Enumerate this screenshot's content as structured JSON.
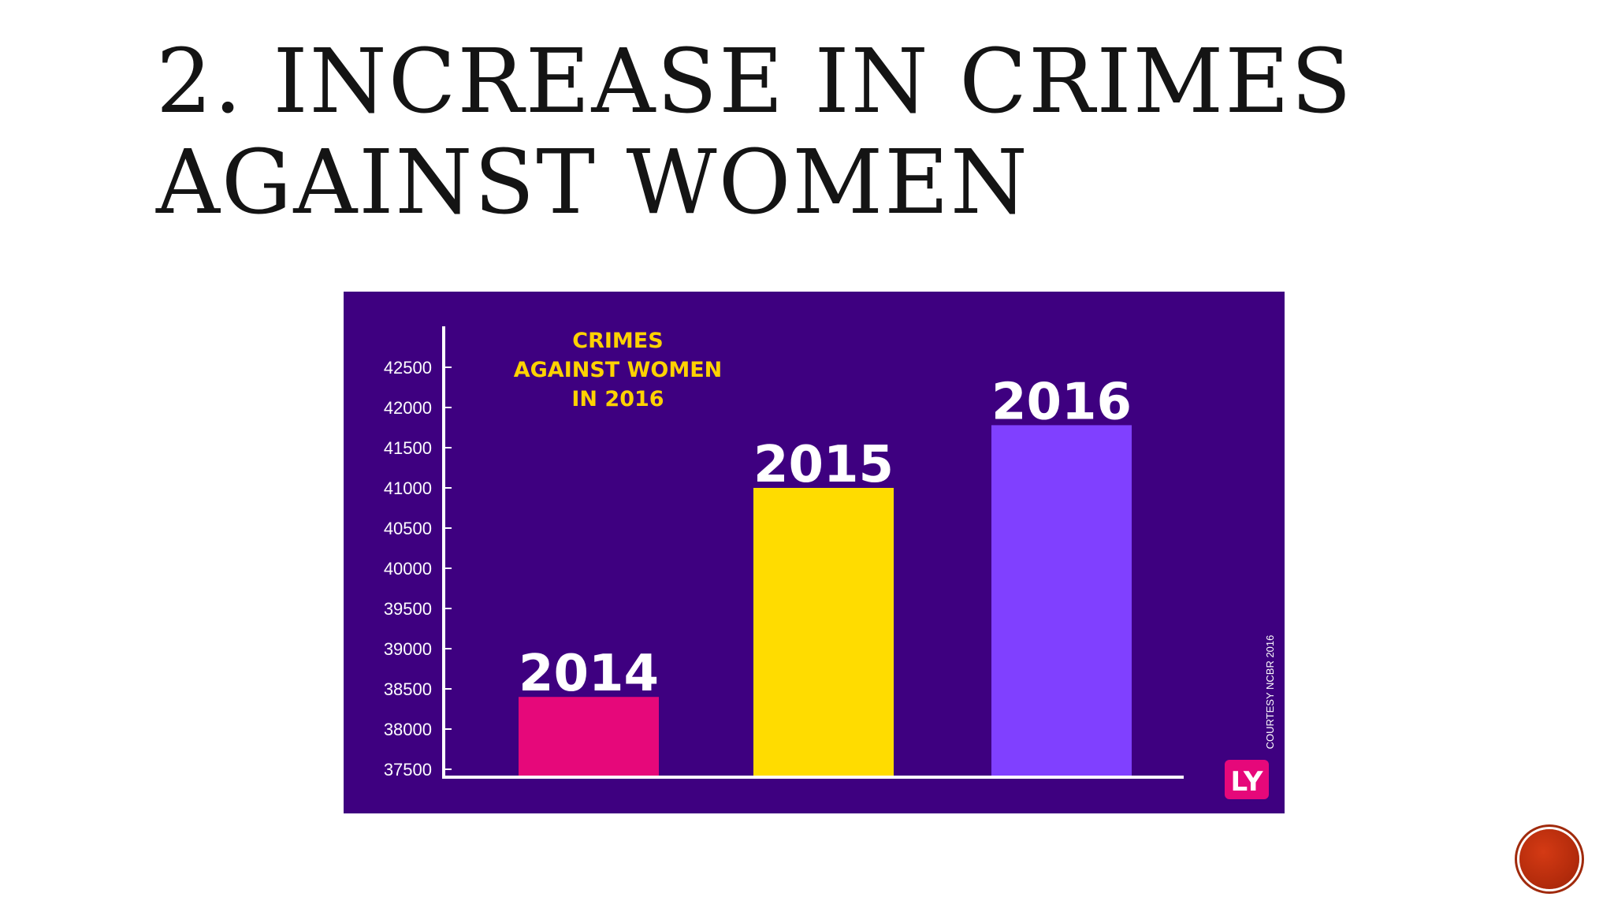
{
  "slide": {
    "title_line1": "2. INCREASE IN CRIMES",
    "title_line2": "AGAINST WOMEN"
  },
  "colors": {
    "panel_background": "#3e0080",
    "bar_2014": "#e6087a",
    "bar_2015": "#ffdc00",
    "bar_2016": "#8040ff",
    "title_text": "#ffd200",
    "nav_button": "#b52c0c"
  },
  "chart_data": {
    "type": "bar",
    "title_lines": [
      "CRIMES",
      "AGAINST WOMEN",
      "IN 2016"
    ],
    "categories": [
      "2014",
      "2015",
      "2016"
    ],
    "values": [
      38400,
      41000,
      41780
    ],
    "bar_colors": [
      "#e6087a",
      "#ffdc00",
      "#8040ff"
    ],
    "yticks": [
      "42500",
      "42000",
      "41500",
      "41000",
      "40500",
      "40000",
      "39500",
      "39000",
      "38500",
      "38000",
      "37500"
    ],
    "ylim": [
      37500,
      42500
    ],
    "xlabel": "",
    "ylabel": "",
    "grid": false,
    "credit": "COURTESY NCBR 2016",
    "logo": "LY"
  }
}
